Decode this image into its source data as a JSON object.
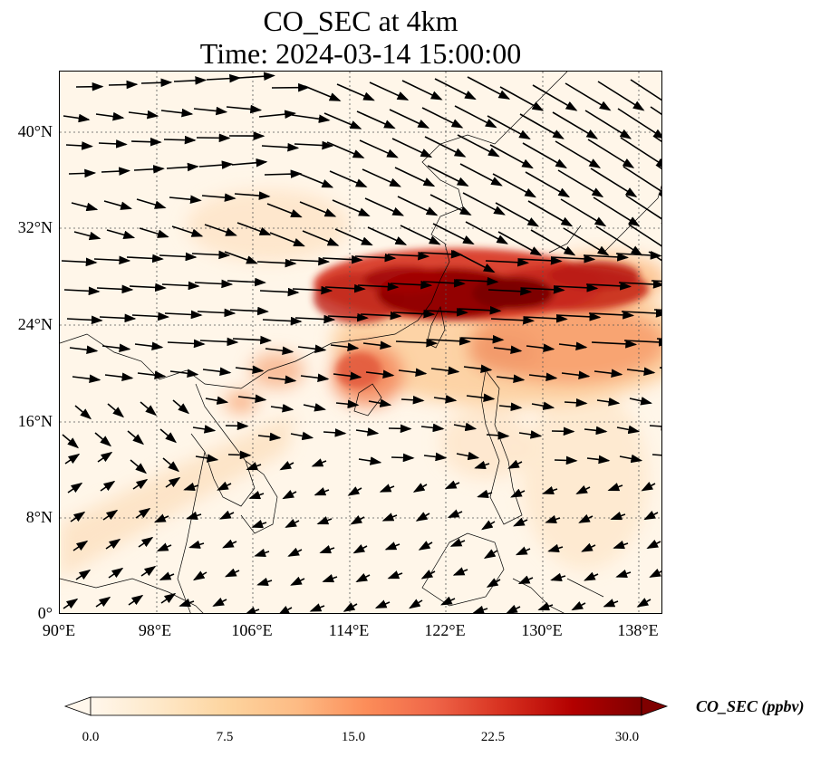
{
  "title": {
    "line1": "CO_SEC at 4km",
    "line2": "Time: 2024-03-14 15:00:00"
  },
  "map": {
    "extent": {
      "lon": [
        90,
        140
      ],
      "lat": [
        0,
        45
      ]
    },
    "gridlines": true,
    "coastlines": true,
    "lat_ticks": [
      "40°N",
      "32°N",
      "24°N",
      "16°N",
      "8°N",
      "0°"
    ],
    "lon_ticks": [
      "90°E",
      "98°E",
      "106°E",
      "114°E",
      "122°E",
      "130°E",
      "138°E"
    ],
    "field": "CO_SEC",
    "overlay": "wind vectors"
  },
  "colorbar": {
    "label": "CO_SEC (ppbv)",
    "ticks": [
      "0.0",
      "7.5",
      "15.0",
      "22.5",
      "30.0"
    ],
    "range": [
      0,
      30
    ],
    "extend": "both",
    "colormap": "OrRd",
    "colors": [
      "#fff7ec",
      "#fee8c8",
      "#fdd49e",
      "#fdbb84",
      "#fc8d59",
      "#ef6548",
      "#d7301f",
      "#b30000",
      "#7f0000"
    ]
  }
}
